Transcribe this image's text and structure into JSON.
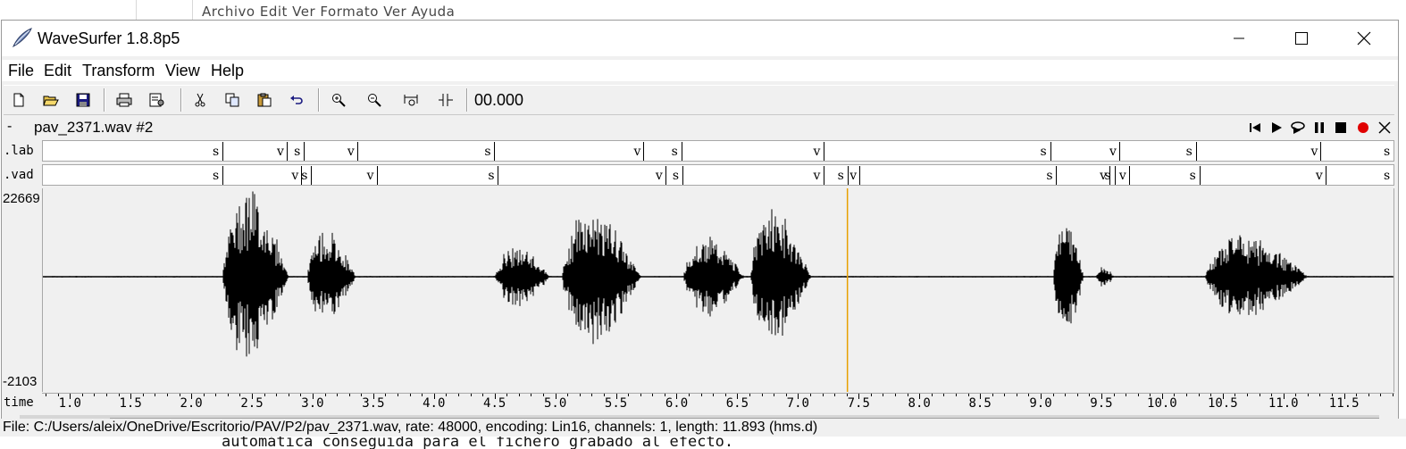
{
  "background": {
    "menu_text": "Archivo  Edit  Ver  Formato  Ver  Ayuda",
    "doc_text": "automática conseguida para el fichero grabado al efecto."
  },
  "window": {
    "title": "WaveSurfer 1.8.8p5",
    "minimize_icon": "minimize-icon",
    "maximize_icon": "maximize-icon",
    "close_icon": "close-icon"
  },
  "menu": [
    "File",
    "Edit",
    "Transform",
    "View",
    "Help"
  ],
  "toolbar": {
    "buttons": [
      "new-file-icon",
      "open-file-icon",
      "save-icon",
      "print-icon",
      "properties-icon",
      "cut-icon",
      "copy-icon",
      "paste-icon",
      "undo-icon",
      "zoom-in-icon",
      "zoom-out-icon",
      "zoom-all-icon",
      "zoom-selection-icon"
    ],
    "time": "00.000"
  },
  "sound": {
    "collapse": "-",
    "name": "pav_2371.wav #2",
    "transport": [
      "skip-start-icon",
      "play-icon",
      "play-loop-icon",
      "pause-icon",
      "stop-icon",
      "record-icon",
      "close-icon"
    ]
  },
  "panes": {
    "lab": {
      "label": ".lab",
      "segments": [
        {
          "label": "s",
          "end": 2.25
        },
        {
          "label": "v",
          "end": 2.78
        },
        {
          "label": "s",
          "end": 2.92
        },
        {
          "label": "v",
          "end": 3.36
        },
        {
          "label": "s",
          "end": 4.49
        },
        {
          "label": "v",
          "end": 5.72
        },
        {
          "label": "s",
          "end": 6.03
        },
        {
          "label": "v",
          "end": 7.2
        },
        {
          "label": "s",
          "end": 9.07
        },
        {
          "label": "v",
          "end": 9.64
        },
        {
          "label": "s",
          "end": 10.27
        },
        {
          "label": "v",
          "end": 11.3
        },
        {
          "label": "s",
          "end": 11.9
        }
      ]
    },
    "vad": {
      "label": ".vad",
      "segments": [
        {
          "label": "s",
          "end": 2.25
        },
        {
          "label": "v",
          "end": 2.9
        },
        {
          "label": "s",
          "end": 2.98
        },
        {
          "label": "v",
          "end": 3.52
        },
        {
          "label": "s",
          "end": 4.52
        },
        {
          "label": "v",
          "end": 5.9
        },
        {
          "label": "s",
          "end": 6.04
        },
        {
          "label": "v",
          "end": 7.2
        },
        {
          "label": "s",
          "end": 7.4
        },
        {
          "label": "v",
          "end": 7.5
        },
        {
          "label": "s",
          "end": 9.12
        },
        {
          "label": "v",
          "end": 9.56
        },
        {
          "label": "s",
          "end": 9.6
        },
        {
          "label": "v",
          "end": 9.72
        },
        {
          "label": "s",
          "end": 10.3
        },
        {
          "label": "v",
          "end": 11.34
        },
        {
          "label": "s",
          "end": 11.9
        }
      ]
    },
    "waveform": {
      "max_label": "22669",
      "min_label": "-2103",
      "cursor_time": 7.4,
      "cursor_color": "#e8a000",
      "wave_color": "#000000",
      "bursts": [
        {
          "start": 2.25,
          "end": 2.8,
          "amp": 0.95
        },
        {
          "start": 2.95,
          "end": 3.35,
          "amp": 0.5
        },
        {
          "start": 4.5,
          "end": 4.95,
          "amp": 0.35
        },
        {
          "start": 5.05,
          "end": 5.7,
          "amp": 0.75
        },
        {
          "start": 6.05,
          "end": 6.55,
          "amp": 0.45
        },
        {
          "start": 6.6,
          "end": 7.1,
          "amp": 0.75
        },
        {
          "start": 9.1,
          "end": 9.35,
          "amp": 0.7
        },
        {
          "start": 9.45,
          "end": 9.6,
          "amp": 0.12
        },
        {
          "start": 10.35,
          "end": 11.2,
          "amp": 0.45
        }
      ]
    },
    "time": {
      "label": "time",
      "ticks": [
        "1.0",
        "1.5",
        "2.0",
        "2.5",
        "3.0",
        "3.5",
        "4.0",
        "4.5",
        "5.0",
        "5.5",
        "6.0",
        "6.5",
        "7.0",
        "7.5",
        "8.0",
        "8.5",
        "9.0",
        "9.5",
        "10.0",
        "10.5",
        "11.0",
        "11.5"
      ]
    }
  },
  "view": {
    "start": 0.77,
    "end": 11.9
  },
  "status": "File: C:/Users/aleix/OneDrive/Escritorio/PAV/P2/pav_2371.wav, rate: 48000, encoding: Lin16, channels: 1, length: 11.893 (hms.d)"
}
